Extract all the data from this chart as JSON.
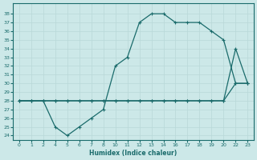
{
  "xlabel": "Humidex (Indice chaleur)",
  "bg_color": "#cce8e8",
  "line_color": "#1a6b6b",
  "grid_color": "#b8d8d8",
  "ylim": [
    23.5,
    39.2
  ],
  "xtick_labels": [
    "0",
    "1",
    "2",
    "4",
    "5",
    "6",
    "7",
    "8",
    "10",
    "11",
    "12",
    "13",
    "14",
    "16",
    "17",
    "18",
    "19",
    "20",
    "22",
    "23"
  ],
  "ytick_labels": [
    "24",
    "25",
    "26",
    "27",
    "28",
    "29",
    "30",
    "31",
    "32",
    "33",
    "34",
    "35",
    "36",
    "37",
    "38"
  ],
  "line1_y": [
    28,
    28,
    28,
    25,
    24,
    25,
    26,
    27,
    32,
    33,
    37,
    38,
    38,
    37,
    37,
    37,
    36,
    35,
    30,
    30
  ],
  "line2_y": [
    28,
    28,
    28,
    28,
    28,
    28,
    28,
    28,
    28,
    28,
    28,
    28,
    28,
    28,
    28,
    28,
    28,
    28,
    34,
    30
  ],
  "line3_y": [
    28,
    28,
    28,
    28,
    28,
    28,
    28,
    28,
    28,
    28,
    28,
    28,
    28,
    28,
    28,
    28,
    28,
    28,
    30,
    30
  ]
}
